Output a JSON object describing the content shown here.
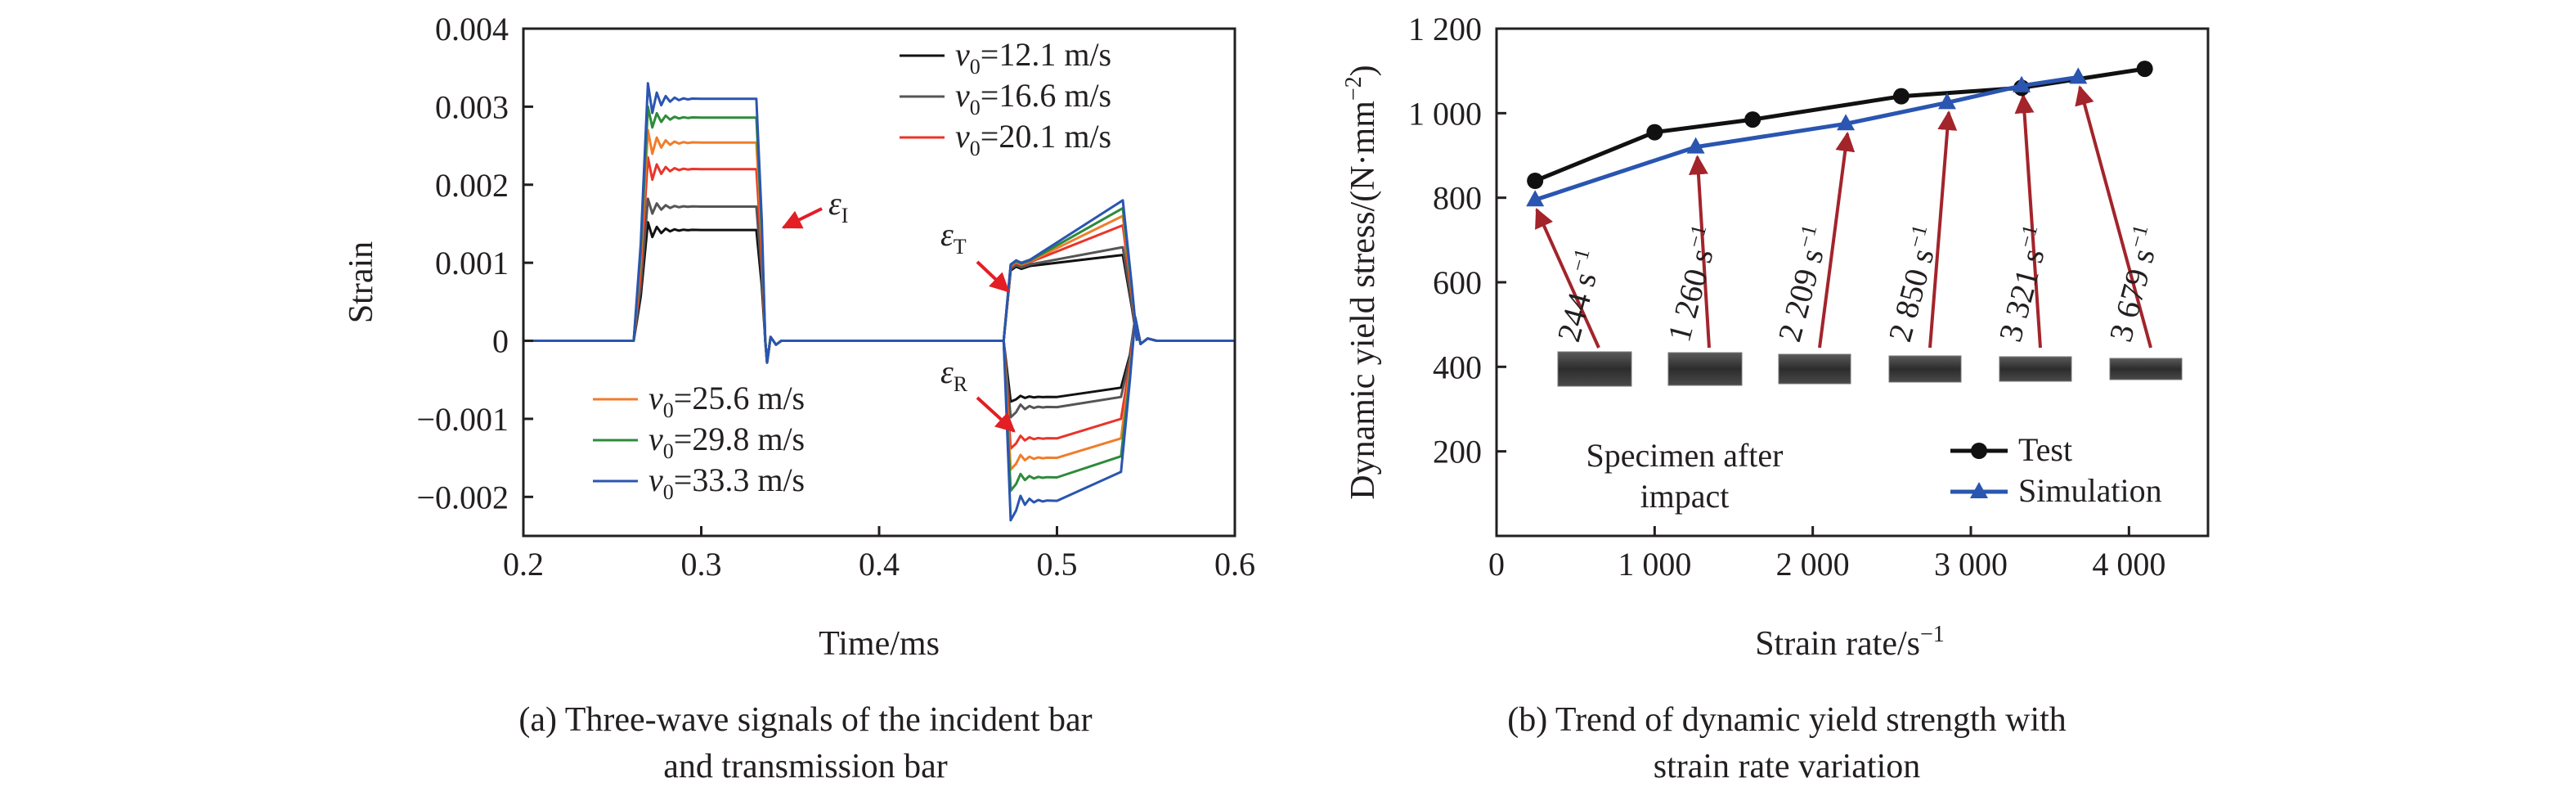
{
  "chart_data": [
    {
      "type": "line",
      "panel": "a",
      "caption_lines": [
        "(a) Three-wave signals of the incident bar",
        "and transmission bar"
      ],
      "xlabel": "Time/ms",
      "ylabel": "Strain",
      "xlim": [
        0.2,
        0.6
      ],
      "ylim": [
        -0.0025,
        0.004
      ],
      "x_ticks": [
        {
          "value": 0.2,
          "label": "0.2"
        },
        {
          "value": 0.3,
          "label": "0.3"
        },
        {
          "value": 0.4,
          "label": "0.4"
        },
        {
          "value": 0.5,
          "label": "0.5"
        },
        {
          "value": 0.6,
          "label": "0.6"
        }
      ],
      "y_ticks": [
        {
          "value": 0.004,
          "label": "0.004"
        },
        {
          "value": 0.003,
          "label": "0.003"
        },
        {
          "value": 0.002,
          "label": "0.002"
        },
        {
          "value": 0.001,
          "label": "0.001"
        },
        {
          "value": 0,
          "label": "0"
        },
        {
          "value": -0.001,
          "label": "−0.001"
        },
        {
          "value": -0.002,
          "label": "−0.002"
        }
      ],
      "grid": false,
      "annotations": [
        {
          "symbol": "ε",
          "sub": "I"
        },
        {
          "symbol": "ε",
          "sub": "T"
        },
        {
          "symbol": "ε",
          "sub": "R"
        }
      ],
      "series": [
        {
          "legend_var": "v",
          "legend_sub": "0",
          "legend_value": "=12.1 m/s",
          "color": "#111111",
          "incident": 0.00142,
          "incident_peak": 0.00152,
          "transmitted_start": 0.00095,
          "transmitted_end": 0.0011,
          "reflected_peak": -0.00078,
          "reflected_start": -0.00072,
          "reflected_end": -0.0006
        },
        {
          "legend_var": "v",
          "legend_sub": "0",
          "legend_value": "=16.6 m/s",
          "color": "#555555",
          "incident": 0.00172,
          "incident_peak": 0.00182,
          "transmitted_start": 0.00097,
          "transmitted_end": 0.0012,
          "reflected_peak": -0.00098,
          "reflected_start": -0.00085,
          "reflected_end": -0.00072
        },
        {
          "legend_var": "v",
          "legend_sub": "0",
          "legend_value": "=20.1 m/s",
          "color": "#e8352a",
          "incident": 0.0022,
          "incident_peak": 0.00235,
          "transmitted_start": 0.001,
          "transmitted_end": 0.00148,
          "reflected_peak": -0.00138,
          "reflected_start": -0.00125,
          "reflected_end": -0.001
        },
        {
          "legend_var": "v",
          "legend_sub": "0",
          "legend_value": "=25.6 m/s",
          "color": "#f07d2a",
          "incident": 0.00254,
          "incident_peak": 0.0027,
          "transmitted_start": 0.00101,
          "transmitted_end": 0.0016,
          "reflected_peak": -0.00165,
          "reflected_start": -0.0015,
          "reflected_end": -0.00125
        },
        {
          "legend_var": "v",
          "legend_sub": "0",
          "legend_value": "=29.8 m/s",
          "color": "#2e8b3a",
          "incident": 0.00286,
          "incident_peak": 0.003,
          "transmitted_start": 0.00102,
          "transmitted_end": 0.0017,
          "reflected_peak": -0.00192,
          "reflected_start": -0.00175,
          "reflected_end": -0.00148
        },
        {
          "legend_var": "v",
          "legend_sub": "0",
          "legend_value": "=33.3 m/s",
          "color": "#2a55b0",
          "incident": 0.0031,
          "incident_peak": 0.0033,
          "transmitted_start": 0.00103,
          "transmitted_end": 0.0018,
          "reflected_peak": -0.0023,
          "reflected_start": -0.00205,
          "reflected_end": -0.00168
        }
      ]
    },
    {
      "type": "line",
      "panel": "b",
      "caption_lines": [
        "(b) Trend of dynamic yield strength with",
        "strain rate variation"
      ],
      "xlabel": "Strain rate/s",
      "xlabel_sup": "−1",
      "ylabel": "Dynamic yield stress/(N·mm",
      "ylabel_sup": "−2",
      "ylabel_close": ")",
      "xlim": [
        0,
        4500
      ],
      "ylim": [
        0,
        1200
      ],
      "x_ticks": [
        {
          "value": 0,
          "label": "0"
        },
        {
          "value": 1000,
          "label": "1 000"
        },
        {
          "value": 2000,
          "label": "2 000"
        },
        {
          "value": 3000,
          "label": "3 000"
        },
        {
          "value": 4000,
          "label": "4 000"
        }
      ],
      "y_ticks": [
        {
          "value": 200,
          "label": "200"
        },
        {
          "value": 400,
          "label": "400"
        },
        {
          "value": 600,
          "label": "600"
        },
        {
          "value": 800,
          "label": "800"
        },
        {
          "value": 1000,
          "label": "1 000"
        },
        {
          "value": 1200,
          "label": "1 200"
        }
      ],
      "grid": false,
      "legend_position": "bottom-right",
      "specimen_text_lines": [
        "Specimen after",
        "impact"
      ],
      "series": [
        {
          "name": "Test",
          "color": "#111111",
          "marker": "circle",
          "x": [
            244,
            1000,
            1620,
            2560,
            3321,
            4100
          ],
          "y": [
            840,
            955,
            985,
            1040,
            1060,
            1105
          ]
        },
        {
          "name": "Simulation",
          "color": "#2a55b0",
          "marker": "triangle",
          "x": [
            244,
            1260,
            2209,
            2850,
            3321,
            3679
          ],
          "y": [
            795,
            920,
            975,
            1025,
            1065,
            1085
          ]
        }
      ],
      "rate_labels": [
        {
          "x": 244,
          "num": "244 s",
          "sup": "−1"
        },
        {
          "x": 1260,
          "num": "1 260 s",
          "sup": "−1"
        },
        {
          "x": 2209,
          "num": "2 209 s",
          "sup": "−1"
        },
        {
          "x": 2850,
          "num": "2 850 s",
          "sup": "−1"
        },
        {
          "x": 3321,
          "num": "3 321 s",
          "sup": "−1"
        },
        {
          "x": 3679,
          "num": "3 679 s",
          "sup": "−1"
        }
      ]
    }
  ]
}
